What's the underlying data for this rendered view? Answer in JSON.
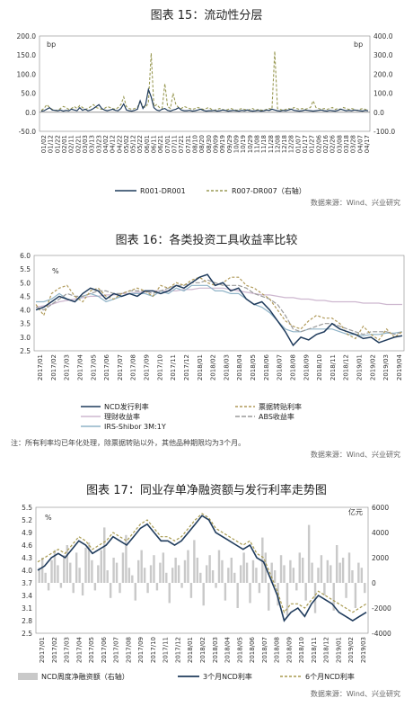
{
  "charts": {
    "c15": {
      "title": "图表 15：流动性分层",
      "source": "数据来源：Wind、兴业研究",
      "legend": [
        "R001-DR001",
        "R007-DR007（右轴）"
      ]
    },
    "c16": {
      "title": "图表 16：各类投资工具收益率比较",
      "source": "数据来源：Wind、兴业研究",
      "note": "注：所有利率均已年化处理，除票据转贴以外，其他品种期限均为3个月。",
      "legend": [
        "NCD发行利率",
        "票据转贴利率",
        "理财收益率",
        "ABS收益率",
        "IRS-Shibor 3M:1Y"
      ]
    },
    "c17": {
      "title": "图表 17：同业存单净融资额与发行利率走势图",
      "source": "数据来源：Wind、兴业研究",
      "legend": [
        "NCD周度净融资额（右轴）",
        "3个月NCD利率",
        "6个月NCD利率"
      ]
    }
  },
  "chart_data": [
    {
      "type": "line",
      "title": "图表 15：流动性分层",
      "xlabel": "",
      "ylabel": "bp",
      "y2label": "bp",
      "ylim": [
        -50,
        200
      ],
      "y_ticks": [
        "200.0",
        "150.0",
        "100.0",
        "50.0",
        "0.0",
        "-50.0"
      ],
      "y2lim": [
        -100,
        400
      ],
      "y2_ticks": [
        "400.0",
        "300.0",
        "200.0",
        "100.0",
        "0.0",
        "-100.0"
      ],
      "x_ticks": [
        "01/02",
        "01/12",
        "01/22",
        "02/01",
        "02/11",
        "02/21",
        "03/03",
        "03/13",
        "03/23",
        "04/02",
        "04/12",
        "04/22",
        "05/02",
        "05/12",
        "05/22",
        "06/01",
        "06/11",
        "06/21",
        "07/01",
        "07/11",
        "07/21",
        "07/31",
        "08/10",
        "08/20",
        "08/30",
        "09/09",
        "09/19",
        "09/29",
        "10/09",
        "10/19",
        "10/29",
        "11/08",
        "11/18",
        "11/28",
        "12/08",
        "12/18",
        "12/28",
        "01/07",
        "01/17",
        "01/27",
        "02/06",
        "02/16",
        "02/26",
        "03/08",
        "03/18",
        "03/28",
        "04/07",
        "04/17"
      ],
      "series": [
        {
          "name": "R001-DR001",
          "axis": "left",
          "values": [
            3,
            4,
            8,
            12,
            6,
            5,
            4,
            6,
            3,
            5,
            4,
            8,
            6,
            4,
            12,
            5,
            8,
            4,
            6,
            10,
            15,
            20,
            10,
            6,
            4,
            6,
            8,
            5,
            4,
            10,
            22,
            6,
            4,
            3,
            5,
            8,
            30,
            10,
            20,
            60,
            40,
            12,
            6,
            4,
            8,
            10,
            5,
            3,
            6,
            8,
            12,
            6,
            4,
            4,
            5,
            3,
            4,
            6,
            8,
            5,
            3,
            4,
            4,
            5,
            3,
            4,
            6,
            5,
            3,
            4,
            5,
            4,
            3,
            5,
            4,
            6,
            4,
            3,
            4,
            5,
            3,
            4,
            6,
            5,
            8,
            6,
            4,
            3,
            5,
            4,
            6,
            8,
            5,
            4,
            3,
            4,
            6,
            5,
            4,
            3,
            4,
            5,
            6,
            4,
            3,
            5,
            4,
            3,
            5,
            8,
            6,
            4,
            5,
            4,
            6,
            5,
            4,
            3,
            5,
            4
          ]
        },
        {
          "name": "R007-DR007（右轴）",
          "axis": "right",
          "values": [
            10,
            20,
            40,
            25,
            15,
            10,
            12,
            20,
            30,
            25,
            15,
            20,
            30,
            20,
            35,
            25,
            15,
            20,
            30,
            40,
            25,
            20,
            15,
            20,
            30,
            25,
            20,
            15,
            25,
            40,
            80,
            30,
            20,
            15,
            20,
            25,
            60,
            30,
            25,
            50,
            310,
            30,
            40,
            25,
            20,
            150,
            30,
            20,
            100,
            40,
            25,
            20,
            30,
            25,
            20,
            15,
            20,
            25,
            20,
            15,
            20,
            25,
            15,
            10,
            15,
            20,
            15,
            10,
            15,
            20,
            15,
            10,
            15,
            20,
            15,
            10,
            15,
            20,
            10,
            15,
            12,
            10,
            15,
            20,
            15,
            320,
            20,
            15,
            10,
            15,
            20,
            15,
            25,
            20,
            15,
            20,
            15,
            20,
            25,
            60,
            25,
            20,
            15,
            20,
            15,
            20,
            25,
            15,
            20,
            15,
            25,
            20,
            15,
            20,
            15,
            10,
            15,
            20,
            15,
            10
          ]
        }
      ]
    },
    {
      "type": "line",
      "title": "图表 16：各类投资工具收益率比较",
      "xlabel": "",
      "ylabel": "%",
      "ylim": [
        2.5,
        6.0
      ],
      "y_ticks": [
        "6.0",
        "5.5",
        "5.0",
        "4.5",
        "4.0",
        "3.5",
        "3.0",
        "2.5"
      ],
      "x_ticks": [
        "2017/01",
        "2017/02",
        "2017/03",
        "2017/04",
        "2017/05",
        "2017/06",
        "2017/07",
        "2017/08",
        "2017/09",
        "2017/10",
        "2017/11",
        "2017/12",
        "2018/01",
        "2018/02",
        "2018/03",
        "2018/04",
        "2018/05",
        "2018/06",
        "2018/07",
        "2018/08",
        "2018/09",
        "2018/10",
        "2018/11",
        "2018/12",
        "2019/01",
        "2019/02",
        "2019/03",
        "2019/04"
      ],
      "series": [
        {
          "name": "NCD发行利率",
          "values": [
            4.0,
            4.1,
            4.3,
            4.5,
            4.4,
            4.3,
            4.6,
            4.8,
            4.7,
            4.4,
            4.6,
            4.5,
            4.6,
            4.5,
            4.7,
            4.7,
            4.6,
            4.7,
            4.9,
            4.8,
            5.0,
            5.2,
            5.3,
            4.9,
            5.0,
            4.7,
            4.8,
            4.4,
            4.2,
            4.3,
            4.0,
            3.6,
            3.2,
            2.7,
            3.0,
            2.9,
            3.1,
            3.2,
            3.5,
            3.3,
            3.2,
            3.1,
            2.95,
            3.0,
            2.8,
            2.9,
            3.0,
            3.05
          ]
        },
        {
          "name": "票据转贴利率",
          "values": [
            4.2,
            3.8,
            4.6,
            4.8,
            4.9,
            4.5,
            4.3,
            4.7,
            4.8,
            4.5,
            4.4,
            4.6,
            4.7,
            4.8,
            4.7,
            4.5,
            4.9,
            4.8,
            5.0,
            4.9,
            5.1,
            5.2,
            5.0,
            4.9,
            5.0,
            5.2,
            5.2,
            4.9,
            4.8,
            4.6,
            4.4,
            4.0,
            3.6,
            3.4,
            3.3,
            3.6,
            3.8,
            3.7,
            3.7,
            3.5,
            3.1,
            2.95,
            3.4,
            3.1,
            2.9,
            3.3,
            3.0,
            3.2
          ]
        },
        {
          "name": "理财收益率",
          "values": [
            4.1,
            4.15,
            4.2,
            4.3,
            4.35,
            4.4,
            4.45,
            4.5,
            4.5,
            4.55,
            4.55,
            4.6,
            4.6,
            4.65,
            4.65,
            4.7,
            4.7,
            4.7,
            4.7,
            4.75,
            4.75,
            4.8,
            4.8,
            4.8,
            4.8,
            4.75,
            4.7,
            4.65,
            4.6,
            4.55,
            4.55,
            4.5,
            4.45,
            4.45,
            4.4,
            4.4,
            4.35,
            4.35,
            4.3,
            4.3,
            4.3,
            4.3,
            4.25,
            4.25,
            4.25,
            4.2,
            4.2,
            4.2
          ]
        },
        {
          "name": "ABS收益率",
          "values": [
            4.1,
            4.0,
            4.2,
            4.4,
            4.6,
            4.5,
            4.5,
            4.6,
            4.7,
            4.7,
            4.6,
            4.6,
            4.7,
            4.7,
            4.7,
            4.6,
            4.7,
            4.8,
            4.9,
            4.9,
            5.0,
            5.0,
            5.1,
            5.0,
            4.9,
            4.9,
            4.9,
            4.8,
            4.6,
            4.5,
            4.4,
            4.2,
            3.8,
            3.3,
            3.2,
            3.3,
            3.4,
            3.5,
            3.5,
            3.4,
            3.3,
            3.2,
            3.1,
            3.2,
            3.2,
            3.2,
            3.1,
            3.2
          ]
        },
        {
          "name": "IRS-Shibor 3M:1Y",
          "values": [
            4.3,
            4.3,
            4.4,
            4.6,
            4.4,
            4.3,
            4.5,
            4.6,
            4.5,
            4.3,
            4.4,
            4.5,
            4.6,
            4.6,
            4.6,
            4.5,
            4.7,
            4.6,
            4.8,
            4.7,
            4.9,
            4.9,
            4.9,
            4.7,
            4.7,
            4.6,
            4.6,
            4.4,
            4.2,
            4.1,
            3.9,
            3.6,
            3.3,
            3.2,
            3.2,
            3.3,
            3.3,
            3.3,
            3.3,
            3.2,
            3.1,
            3.1,
            3.05,
            3.1,
            3.1,
            3.15,
            3.15,
            3.2
          ]
        }
      ]
    },
    {
      "type": "bar",
      "title": "图表 17：同业存单净融资额与发行利率走势图",
      "xlabel": "",
      "ylabel": "%",
      "y2label": "亿元",
      "ylim": [
        2.5,
        5.5
      ],
      "y_ticks": [
        "5.5",
        "5.2",
        "4.9",
        "4.6",
        "4.3",
        "4.0",
        "3.7",
        "3.4",
        "3.1",
        "2.8",
        "2.5"
      ],
      "y2lim": [
        -4000,
        6000
      ],
      "y2_ticks": [
        "6000",
        "4000",
        "2000",
        "0",
        "-2000",
        "-4000"
      ],
      "x_ticks": [
        "2017/01",
        "2017/02",
        "2017/03",
        "2017/04",
        "2017/05",
        "2017/06",
        "2017/07",
        "2017/08",
        "2017/09",
        "2017/10",
        "2017/11",
        "2017/12",
        "2018/01",
        "2018/02",
        "2018/03",
        "2018/04",
        "2018/05",
        "2018/06",
        "2018/07",
        "2018/08",
        "2018/09",
        "2018/10",
        "2018/11",
        "2018/12",
        "2019/01",
        "2019/02",
        "2019/03"
      ],
      "series": [
        {
          "name": "NCD周度净融资额（右轴）",
          "axis": "right",
          "type": "bar",
          "values": [
            1200,
            2000,
            800,
            -600,
            1800,
            2600,
            1400,
            -400,
            2200,
            3000,
            1600,
            -800,
            2400,
            1200,
            -1000,
            2800,
            3200,
            1800,
            -600,
            1400,
            2600,
            4400,
            1000,
            -1200,
            2000,
            1600,
            -800,
            2400,
            3800,
            1200,
            600,
            -1400,
            1800,
            2600,
            1200,
            -800,
            1400,
            2200,
            -600,
            1600,
            2400,
            800,
            -1600,
            1200,
            2000,
            1400,
            -400,
            1800,
            2600,
            -1200,
            3400,
            2000,
            800,
            -1800,
            1400,
            2200,
            1000,
            -400,
            2600,
            1800,
            -1400,
            1200,
            2000,
            800,
            -2000,
            1400,
            2400,
            1600,
            -1600,
            1800,
            1200,
            -800,
            3600,
            2400,
            -2200,
            1600,
            1000,
            -1800,
            2200,
            1400,
            -2600,
            1800,
            1200,
            -600,
            2400,
            2000,
            -1400,
            4600,
            1600,
            -2400,
            1200,
            2200,
            -1000,
            1800,
            1400,
            -2200,
            3000,
            1600,
            2000,
            -1200,
            2400,
            1000,
            -2000,
            1600,
            1200,
            -800
          ]
        },
        {
          "name": "3个月NCD利率",
          "axis": "left",
          "values": [
            4.0,
            4.1,
            4.3,
            4.4,
            4.3,
            4.5,
            4.7,
            4.6,
            4.4,
            4.5,
            4.6,
            4.8,
            4.7,
            4.6,
            4.8,
            5.0,
            5.1,
            4.9,
            4.7,
            4.7,
            4.6,
            4.7,
            4.9,
            5.1,
            5.3,
            5.2,
            4.9,
            4.8,
            4.7,
            4.6,
            4.5,
            4.6,
            4.3,
            4.2,
            3.8,
            3.4,
            2.8,
            3.0,
            3.1,
            2.9,
            3.2,
            3.4,
            3.3,
            3.2,
            3.0,
            2.9,
            2.8,
            2.9,
            3.0
          ]
        },
        {
          "name": "6个月NCD利率",
          "axis": "left",
          "values": [
            4.2,
            4.3,
            4.4,
            4.5,
            4.4,
            4.6,
            4.8,
            4.7,
            4.5,
            4.6,
            4.7,
            4.9,
            4.8,
            4.7,
            4.9,
            5.1,
            5.2,
            5.0,
            4.8,
            4.8,
            4.7,
            4.8,
            5.0,
            5.2,
            5.35,
            5.25,
            5.0,
            4.9,
            4.8,
            4.7,
            4.6,
            4.7,
            4.4,
            4.3,
            3.9,
            3.5,
            3.0,
            3.2,
            3.2,
            3.1,
            3.3,
            3.5,
            3.4,
            3.3,
            3.2,
            3.1,
            3.0,
            3.1,
            3.2
          ]
        }
      ]
    }
  ]
}
